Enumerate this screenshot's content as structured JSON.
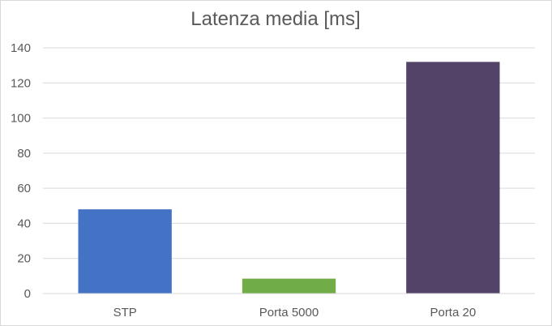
{
  "chart_data": {
    "type": "bar",
    "title": "Latenza media [ms]",
    "categories": [
      "STP",
      "Porta 5000",
      "Porta 20"
    ],
    "values": [
      48,
      8.5,
      132
    ],
    "colors": [
      "#4472c4",
      "#70ad47",
      "#544369"
    ],
    "ylim": [
      0,
      140
    ],
    "yticks": [
      "0",
      "20",
      "40",
      "60",
      "80",
      "100",
      "120",
      "140"
    ],
    "xlabel": "",
    "ylabel": "",
    "grid": true,
    "legend": "none"
  }
}
